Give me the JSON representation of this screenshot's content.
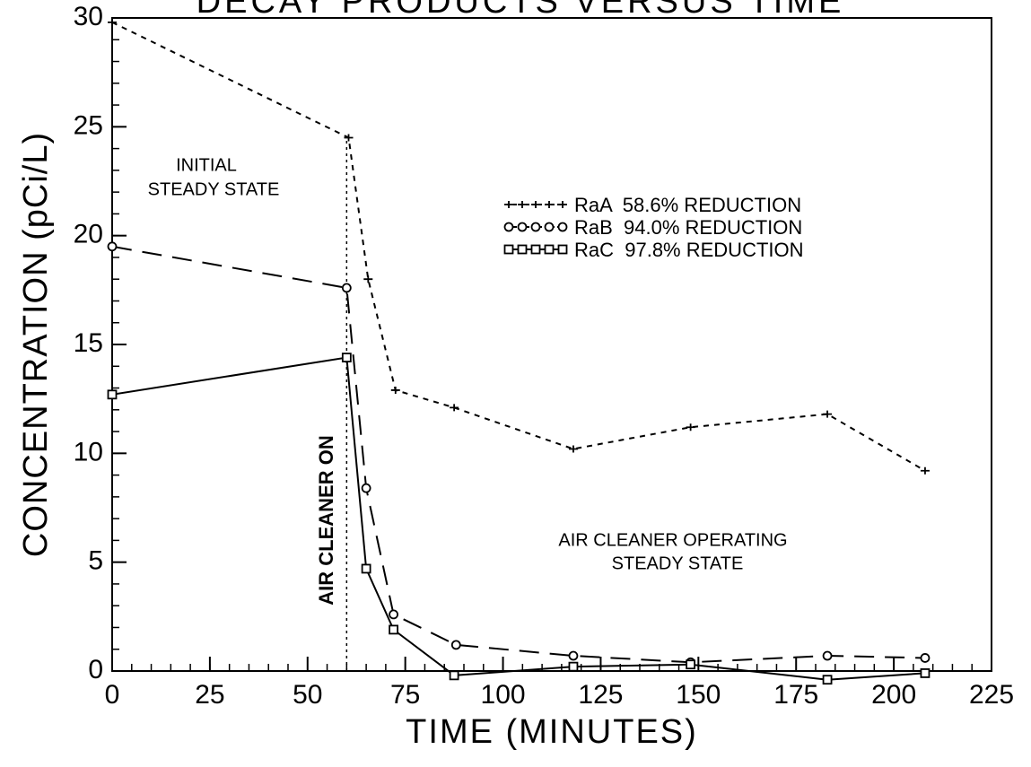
{
  "chart_data": {
    "type": "line",
    "title": "DECAY PRODUCTS VERSUS TIME",
    "x_label": "TIME (MINUTES)",
    "y_label": "CONCENTRATION (pCi/L)",
    "xlim": [
      0,
      225
    ],
    "xticks": [
      0,
      25,
      50,
      75,
      100,
      125,
      150,
      175,
      200,
      225
    ],
    "xminor": 5,
    "ylim": [
      0,
      30
    ],
    "yticks": [
      0,
      5,
      10,
      15,
      20,
      25,
      30
    ],
    "yminor": 1,
    "legend": "upper right",
    "vline": 60,
    "annotations": [
      "INITIAL",
      "STEADY STATE",
      "AIR CLEANER ON",
      "AIR CLEANER OPERATING",
      "STEADY STATE"
    ],
    "series": [
      {
        "name": "RaA  58.6% REDUCTION",
        "color": "#000000",
        "dash": "6,6",
        "marker": "star",
        "x": [
          0,
          60.5,
          65.5,
          72.5,
          87.5,
          118,
          148,
          183,
          208
        ],
        "values": [
          29.8,
          24.5,
          18,
          12.9,
          12.1,
          10.2,
          11.2,
          11.8,
          9.2
        ]
      },
      {
        "name": "RaB  94.0% REDUCTION",
        "color": "#000000",
        "dash": "22,12",
        "marker": "circle",
        "x": [
          0,
          60,
          65,
          72,
          88,
          118,
          148,
          183,
          208
        ],
        "values": [
          19.5,
          17.6,
          8.4,
          2.6,
          1.2,
          0.7,
          0.4,
          0.7,
          0.6
        ]
      },
      {
        "name": "RaC  97.8% REDUCTION",
        "color": "#000000",
        "dash": "none",
        "marker": "square",
        "x": [
          0,
          60,
          65,
          72,
          87.5,
          118,
          148,
          183,
          208
        ],
        "values": [
          12.7,
          14.4,
          4.7,
          1.9,
          -0.2,
          0.2,
          0.3,
          -0.4,
          -0.1
        ]
      }
    ]
  }
}
